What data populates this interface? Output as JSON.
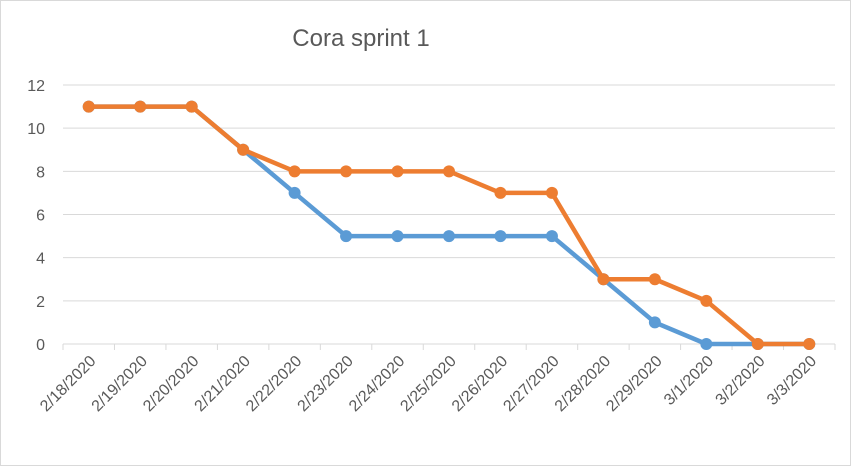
{
  "chart_data": {
    "type": "line",
    "title": "Cora sprint 1",
    "xlabel": "",
    "ylabel": "",
    "categories": [
      "2/18/2020",
      "2/19/2020",
      "2/20/2020",
      "2/21/2020",
      "2/22/2020",
      "2/23/2020",
      "2/24/2020",
      "2/25/2020",
      "2/26/2020",
      "2/27/2020",
      "2/28/2020",
      "2/29/2020",
      "3/1/2020",
      "3/2/2020",
      "3/3/2020"
    ],
    "ylim": [
      0,
      12
    ],
    "yticks": [
      0,
      2,
      4,
      6,
      8,
      10,
      12
    ],
    "grid": true,
    "legend": "none",
    "series": [
      {
        "color": "#5b9bd5",
        "values": [
          11,
          11,
          11,
          9,
          7,
          5,
          5,
          5,
          5,
          5,
          3,
          1,
          0,
          0,
          0
        ]
      },
      {
        "color": "#ed7d31",
        "values": [
          11,
          11,
          11,
          9,
          8,
          8,
          8,
          8,
          7,
          7,
          3,
          3,
          2,
          0,
          0
        ]
      }
    ]
  },
  "colors": {
    "grid": "#d9d9d9",
    "text": "#595959",
    "background": "#ffffff"
  }
}
